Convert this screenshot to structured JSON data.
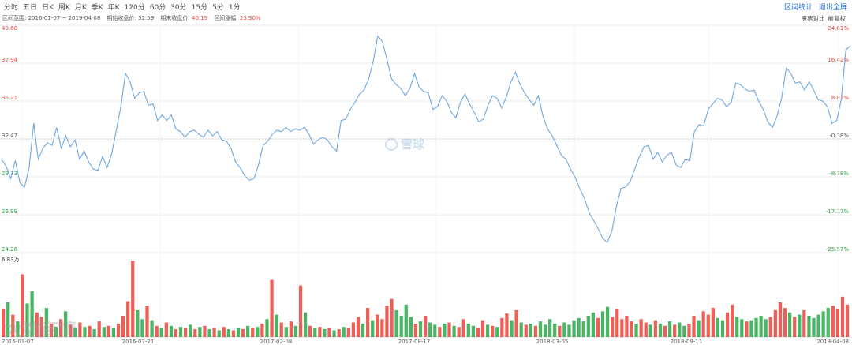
{
  "toolbar": {
    "periods": [
      "分时",
      "五日",
      "日K",
      "周K",
      "月K",
      "季K",
      "年K",
      "120分",
      "60分",
      "30分",
      "15分",
      "5分",
      "1分"
    ],
    "actions": [
      "区间统计",
      "退出全屏"
    ]
  },
  "info": {
    "range_label": "区间范围:",
    "range_value": "2016-01-07 ~ 2019-04-08",
    "start_close_label": "期始收盘价:",
    "start_close_value": "32.59",
    "end_close_label": "期末收盘价:",
    "end_close_value": "40.19",
    "change_label": "区间涨幅:",
    "change_value": "23.30%"
  },
  "right_tools": [
    "股票对比",
    "前复权"
  ],
  "watermark": "雪球",
  "corner_watermark": "大数商情",
  "colors": {
    "line": "#6fa8e0",
    "up": "#e8453c",
    "down": "#2aa84a",
    "grid": "#eeeeee",
    "base": "#cccccc"
  },
  "chart_data": {
    "type": "line",
    "x_ticks": [
      "2016-01-07",
      "2016-07-21",
      "2017-02-08",
      "2017-08-17",
      "2018-03-05",
      "2018-09-11",
      "2019-04-08"
    ],
    "y_price_ticks": [
      40.68,
      37.94,
      35.21,
      32.47,
      29.73,
      26.99,
      24.26
    ],
    "y_pct_ticks": [
      "24.81%",
      "16.42%",
      "8.02%",
      "-0.38%",
      "-8.78%",
      "-17.17%",
      "-25.57%"
    ],
    "ylim": [
      24.26,
      40.68
    ],
    "base_price": 32.47,
    "volume_max_label": "6.83万",
    "series": [
      {
        "values": [
          31.0,
          30.5,
          29.6,
          30.9,
          29.3,
          29.0,
          30.4,
          33.6,
          31.0,
          31.8,
          32.2,
          32.0,
          33.3,
          31.8,
          32.7,
          31.9,
          32.4,
          31.0,
          31.6,
          30.8,
          30.3,
          30.2,
          31.2,
          30.4,
          31.4,
          33.1,
          34.8,
          37.2,
          36.6,
          35.4,
          35.8,
          35.9,
          34.9,
          35.0,
          33.8,
          34.2,
          33.8,
          34.2,
          33.2,
          33.0,
          32.6,
          33.0,
          33.1,
          32.8,
          32.6,
          33.1,
          32.7,
          33.0,
          32.4,
          32.3,
          31.8,
          30.8,
          30.4,
          29.8,
          29.5,
          29.6,
          30.6,
          32.0,
          32.3,
          32.8,
          33.1,
          33.0,
          33.3,
          33.0,
          33.2,
          33.1,
          33.3,
          32.8,
          32.1,
          32.4,
          32.6,
          32.4,
          31.9,
          31.6,
          33.8,
          33.9,
          34.6,
          35.1,
          35.7,
          36.0,
          36.8,
          38.1,
          39.9,
          39.5,
          38.2,
          36.8,
          36.4,
          36.1,
          35.6,
          36.1,
          37.2,
          36.2,
          35.9,
          35.8,
          34.6,
          34.8,
          35.6,
          35.2,
          34.4,
          34.0,
          35.1,
          35.7,
          35.0,
          34.4,
          33.7,
          33.9,
          34.9,
          35.6,
          35.4,
          34.7,
          35.5,
          36.6,
          37.3,
          36.4,
          35.8,
          35.3,
          34.9,
          35.6,
          34.1,
          33.2,
          32.7,
          32.0,
          31.3,
          31.0,
          30.3,
          29.7,
          28.9,
          28.2,
          27.2,
          26.6,
          26.0,
          25.3,
          25.0,
          25.8,
          27.6,
          28.9,
          29.0,
          29.4,
          30.3,
          31.2,
          31.9,
          32.0,
          31.0,
          31.5,
          30.8,
          31.3,
          31.5,
          30.6,
          30.4,
          31.0,
          30.9,
          33.0,
          33.5,
          33.4,
          34.6,
          35.0,
          35.4,
          35.3,
          34.8,
          35.1,
          36.5,
          36.4,
          36.1,
          35.9,
          36.0,
          35.2,
          34.6,
          33.7,
          33.3,
          34.1,
          35.4,
          37.6,
          37.2,
          36.5,
          36.6,
          36.0,
          36.6,
          36.0,
          35.3,
          35.2,
          34.8,
          33.6,
          33.8,
          35.3,
          38.9,
          39.2
        ]
      }
    ],
    "volume": [
      {
        "value": 2.5,
        "up": true
      },
      {
        "value": 3.1,
        "up": false
      },
      {
        "value": 2.0,
        "up": true
      },
      {
        "value": 1.4,
        "up": false
      },
      {
        "value": 5.6,
        "up": true
      },
      {
        "value": 3.0,
        "up": false
      },
      {
        "value": 4.1,
        "up": false
      },
      {
        "value": 2.2,
        "up": true
      },
      {
        "value": 1.8,
        "up": true
      },
      {
        "value": 2.6,
        "up": false
      },
      {
        "value": 1.2,
        "up": true
      },
      {
        "value": 0.9,
        "up": false
      },
      {
        "value": 1.6,
        "up": true
      },
      {
        "value": 2.3,
        "up": false
      },
      {
        "value": 1.1,
        "up": true
      },
      {
        "value": 0.8,
        "up": false
      },
      {
        "value": 1.3,
        "up": true
      },
      {
        "value": 0.9,
        "up": false
      },
      {
        "value": 1.0,
        "up": true
      },
      {
        "value": 0.7,
        "up": false
      },
      {
        "value": 1.4,
        "up": true
      },
      {
        "value": 0.9,
        "up": false
      },
      {
        "value": 1.0,
        "up": true
      },
      {
        "value": 0.8,
        "up": false
      },
      {
        "value": 1.2,
        "up": true
      },
      {
        "value": 1.9,
        "up": true
      },
      {
        "value": 3.2,
        "up": true
      },
      {
        "value": 6.8,
        "up": true
      },
      {
        "value": 2.4,
        "up": false
      },
      {
        "value": 1.6,
        "up": false
      },
      {
        "value": 2.8,
        "up": true
      },
      {
        "value": 1.5,
        "up": false
      },
      {
        "value": 1.0,
        "up": true
      },
      {
        "value": 0.8,
        "up": false
      },
      {
        "value": 1.3,
        "up": true
      },
      {
        "value": 1.0,
        "up": false
      },
      {
        "value": 0.7,
        "up": true
      },
      {
        "value": 0.9,
        "up": false
      },
      {
        "value": 0.8,
        "up": true
      },
      {
        "value": 1.1,
        "up": false
      },
      {
        "value": 0.7,
        "up": true
      },
      {
        "value": 0.9,
        "up": false
      },
      {
        "value": 1.0,
        "up": true
      },
      {
        "value": 0.7,
        "up": false
      },
      {
        "value": 0.8,
        "up": true
      },
      {
        "value": 0.6,
        "up": false
      },
      {
        "value": 0.9,
        "up": true
      },
      {
        "value": 0.7,
        "up": false
      },
      {
        "value": 0.6,
        "up": true
      },
      {
        "value": 0.8,
        "up": false
      },
      {
        "value": 0.7,
        "up": true
      },
      {
        "value": 1.0,
        "up": false
      },
      {
        "value": 0.8,
        "up": true
      },
      {
        "value": 0.9,
        "up": false
      },
      {
        "value": 1.2,
        "up": true
      },
      {
        "value": 1.6,
        "up": false
      },
      {
        "value": 5.1,
        "up": true
      },
      {
        "value": 2.0,
        "up": false
      },
      {
        "value": 1.3,
        "up": true
      },
      {
        "value": 0.9,
        "up": false
      },
      {
        "value": 1.4,
        "up": true
      },
      {
        "value": 1.0,
        "up": false
      },
      {
        "value": 4.6,
        "up": true
      },
      {
        "value": 2.2,
        "up": false
      },
      {
        "value": 1.0,
        "up": true
      },
      {
        "value": 0.8,
        "up": false
      },
      {
        "value": 0.9,
        "up": true
      },
      {
        "value": 0.7,
        "up": false
      },
      {
        "value": 0.8,
        "up": true
      },
      {
        "value": 0.6,
        "up": false
      },
      {
        "value": 0.7,
        "up": true
      },
      {
        "value": 0.9,
        "up": false
      },
      {
        "value": 0.8,
        "up": true
      },
      {
        "value": 1.3,
        "up": true
      },
      {
        "value": 1.8,
        "up": true
      },
      {
        "value": 1.2,
        "up": false
      },
      {
        "value": 2.6,
        "up": true
      },
      {
        "value": 1.5,
        "up": false
      },
      {
        "value": 2.0,
        "up": true
      },
      {
        "value": 1.6,
        "up": true
      },
      {
        "value": 2.8,
        "up": true
      },
      {
        "value": 3.4,
        "up": true
      },
      {
        "value": 2.4,
        "up": false
      },
      {
        "value": 1.9,
        "up": false
      },
      {
        "value": 2.9,
        "up": false
      },
      {
        "value": 1.8,
        "up": false
      },
      {
        "value": 1.2,
        "up": true
      },
      {
        "value": 1.4,
        "up": false
      },
      {
        "value": 1.9,
        "up": true
      },
      {
        "value": 1.3,
        "up": false
      },
      {
        "value": 1.1,
        "up": false
      },
      {
        "value": 0.9,
        "up": true
      },
      {
        "value": 1.2,
        "up": false
      },
      {
        "value": 1.3,
        "up": true
      },
      {
        "value": 1.0,
        "up": false
      },
      {
        "value": 0.9,
        "up": true
      },
      {
        "value": 1.6,
        "up": true
      },
      {
        "value": 1.2,
        "up": false
      },
      {
        "value": 1.0,
        "up": false
      },
      {
        "value": 0.8,
        "up": true
      },
      {
        "value": 1.5,
        "up": true
      },
      {
        "value": 1.1,
        "up": false
      },
      {
        "value": 1.0,
        "up": true
      },
      {
        "value": 0.9,
        "up": false
      },
      {
        "value": 1.7,
        "up": true
      },
      {
        "value": 2.1,
        "up": true
      },
      {
        "value": 1.5,
        "up": false
      },
      {
        "value": 2.4,
        "up": true
      },
      {
        "value": 1.3,
        "up": false
      },
      {
        "value": 1.1,
        "up": true
      },
      {
        "value": 1.2,
        "up": false
      },
      {
        "value": 1.0,
        "up": true
      },
      {
        "value": 1.4,
        "up": false
      },
      {
        "value": 1.1,
        "up": false
      },
      {
        "value": 1.6,
        "up": false
      },
      {
        "value": 1.2,
        "up": false
      },
      {
        "value": 1.0,
        "up": true
      },
      {
        "value": 1.3,
        "up": false
      },
      {
        "value": 1.1,
        "up": false
      },
      {
        "value": 1.5,
        "up": false
      },
      {
        "value": 1.7,
        "up": false
      },
      {
        "value": 1.4,
        "up": false
      },
      {
        "value": 1.9,
        "up": false
      },
      {
        "value": 2.2,
        "up": false
      },
      {
        "value": 1.7,
        "up": true
      },
      {
        "value": 2.3,
        "up": false
      },
      {
        "value": 2.7,
        "up": false
      },
      {
        "value": 1.8,
        "up": true
      },
      {
        "value": 2.5,
        "up": true
      },
      {
        "value": 1.6,
        "up": true
      },
      {
        "value": 1.9,
        "up": true
      },
      {
        "value": 1.4,
        "up": true
      },
      {
        "value": 1.2,
        "up": false
      },
      {
        "value": 1.6,
        "up": true
      },
      {
        "value": 1.3,
        "up": true
      },
      {
        "value": 1.1,
        "up": false
      },
      {
        "value": 1.5,
        "up": true
      },
      {
        "value": 1.2,
        "up": false
      },
      {
        "value": 1.0,
        "up": true
      },
      {
        "value": 1.4,
        "up": false
      },
      {
        "value": 1.1,
        "up": true
      },
      {
        "value": 1.3,
        "up": false
      },
      {
        "value": 1.0,
        "up": false
      },
      {
        "value": 1.2,
        "up": true
      },
      {
        "value": 1.9,
        "up": true
      },
      {
        "value": 1.5,
        "up": false
      },
      {
        "value": 2.3,
        "up": true
      },
      {
        "value": 2.0,
        "up": true
      },
      {
        "value": 2.6,
        "up": true
      },
      {
        "value": 1.7,
        "up": false
      },
      {
        "value": 1.5,
        "up": false
      },
      {
        "value": 2.2,
        "up": true
      },
      {
        "value": 2.9,
        "up": true
      },
      {
        "value": 1.8,
        "up": false
      },
      {
        "value": 1.6,
        "up": false
      },
      {
        "value": 1.4,
        "up": true
      },
      {
        "value": 1.5,
        "up": false
      },
      {
        "value": 1.7,
        "up": false
      },
      {
        "value": 1.9,
        "up": false
      },
      {
        "value": 1.6,
        "up": false
      },
      {
        "value": 1.8,
        "up": true
      },
      {
        "value": 2.4,
        "up": true
      },
      {
        "value": 3.1,
        "up": true
      },
      {
        "value": 2.6,
        "up": true
      },
      {
        "value": 2.2,
        "up": false
      },
      {
        "value": 1.8,
        "up": true
      },
      {
        "value": 2.0,
        "up": false
      },
      {
        "value": 2.4,
        "up": true
      },
      {
        "value": 1.9,
        "up": false
      },
      {
        "value": 1.7,
        "up": false
      },
      {
        "value": 2.0,
        "up": false
      },
      {
        "value": 2.3,
        "up": false
      },
      {
        "value": 2.6,
        "up": false
      },
      {
        "value": 2.8,
        "up": true
      },
      {
        "value": 2.5,
        "up": true
      },
      {
        "value": 3.6,
        "up": true
      },
      {
        "value": 2.9,
        "up": true
      }
    ]
  }
}
